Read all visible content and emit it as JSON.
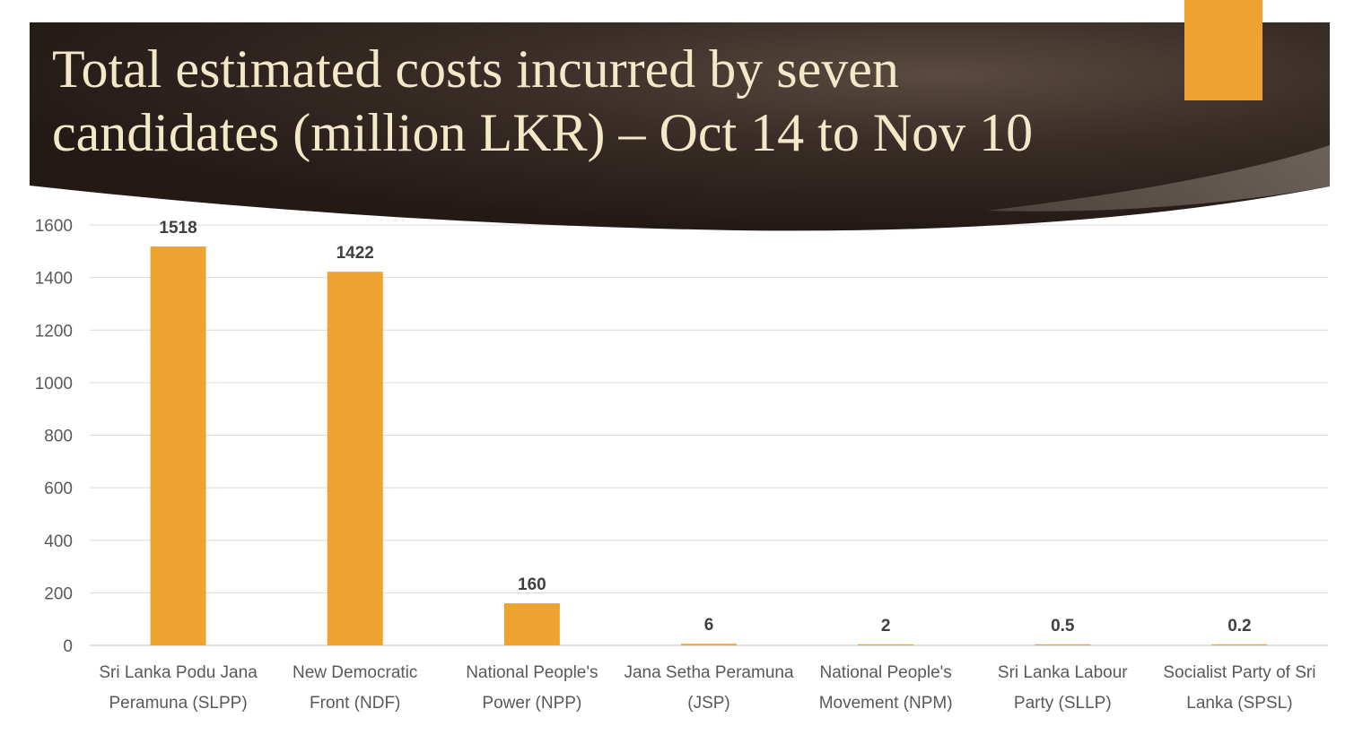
{
  "slide": {
    "title": "Total estimated costs incurred by seven candidates (million LKR) – Oct 14 to Nov 10",
    "accent_color": "#EEA22F",
    "banner_color": "#2c211c"
  },
  "chart_data": {
    "type": "bar",
    "title": "Total estimated costs incurred by seven candidates (million LKR) – Oct 14 to Nov 10",
    "xlabel": "",
    "ylabel": "",
    "ylim": [
      0,
      1600
    ],
    "yticks": [
      0,
      200,
      400,
      600,
      800,
      1000,
      1200,
      1400,
      1600
    ],
    "grid": true,
    "legend": "none",
    "bar_color": "#EEA22F",
    "categories": [
      [
        "Sri Lanka Podu Jana",
        "Peramuna (SLPP)"
      ],
      [
        "New Democratic",
        "Front (NDF)"
      ],
      [
        "National People's",
        "Power (NPP)"
      ],
      [
        "Jana Setha Peramuna",
        "(JSP)"
      ],
      [
        "National People's",
        "Movement (NPM)"
      ],
      [
        "Sri Lanka Labour",
        "Party (SLLP)"
      ],
      [
        "Socialist Party of Sri",
        "Lanka (SPSL)"
      ]
    ],
    "values": [
      1518,
      1422,
      160,
      6,
      2,
      0.5,
      0.2
    ],
    "data_labels": [
      "1518",
      "1422",
      "160",
      "6",
      "2",
      "0.5",
      "0.2"
    ]
  }
}
